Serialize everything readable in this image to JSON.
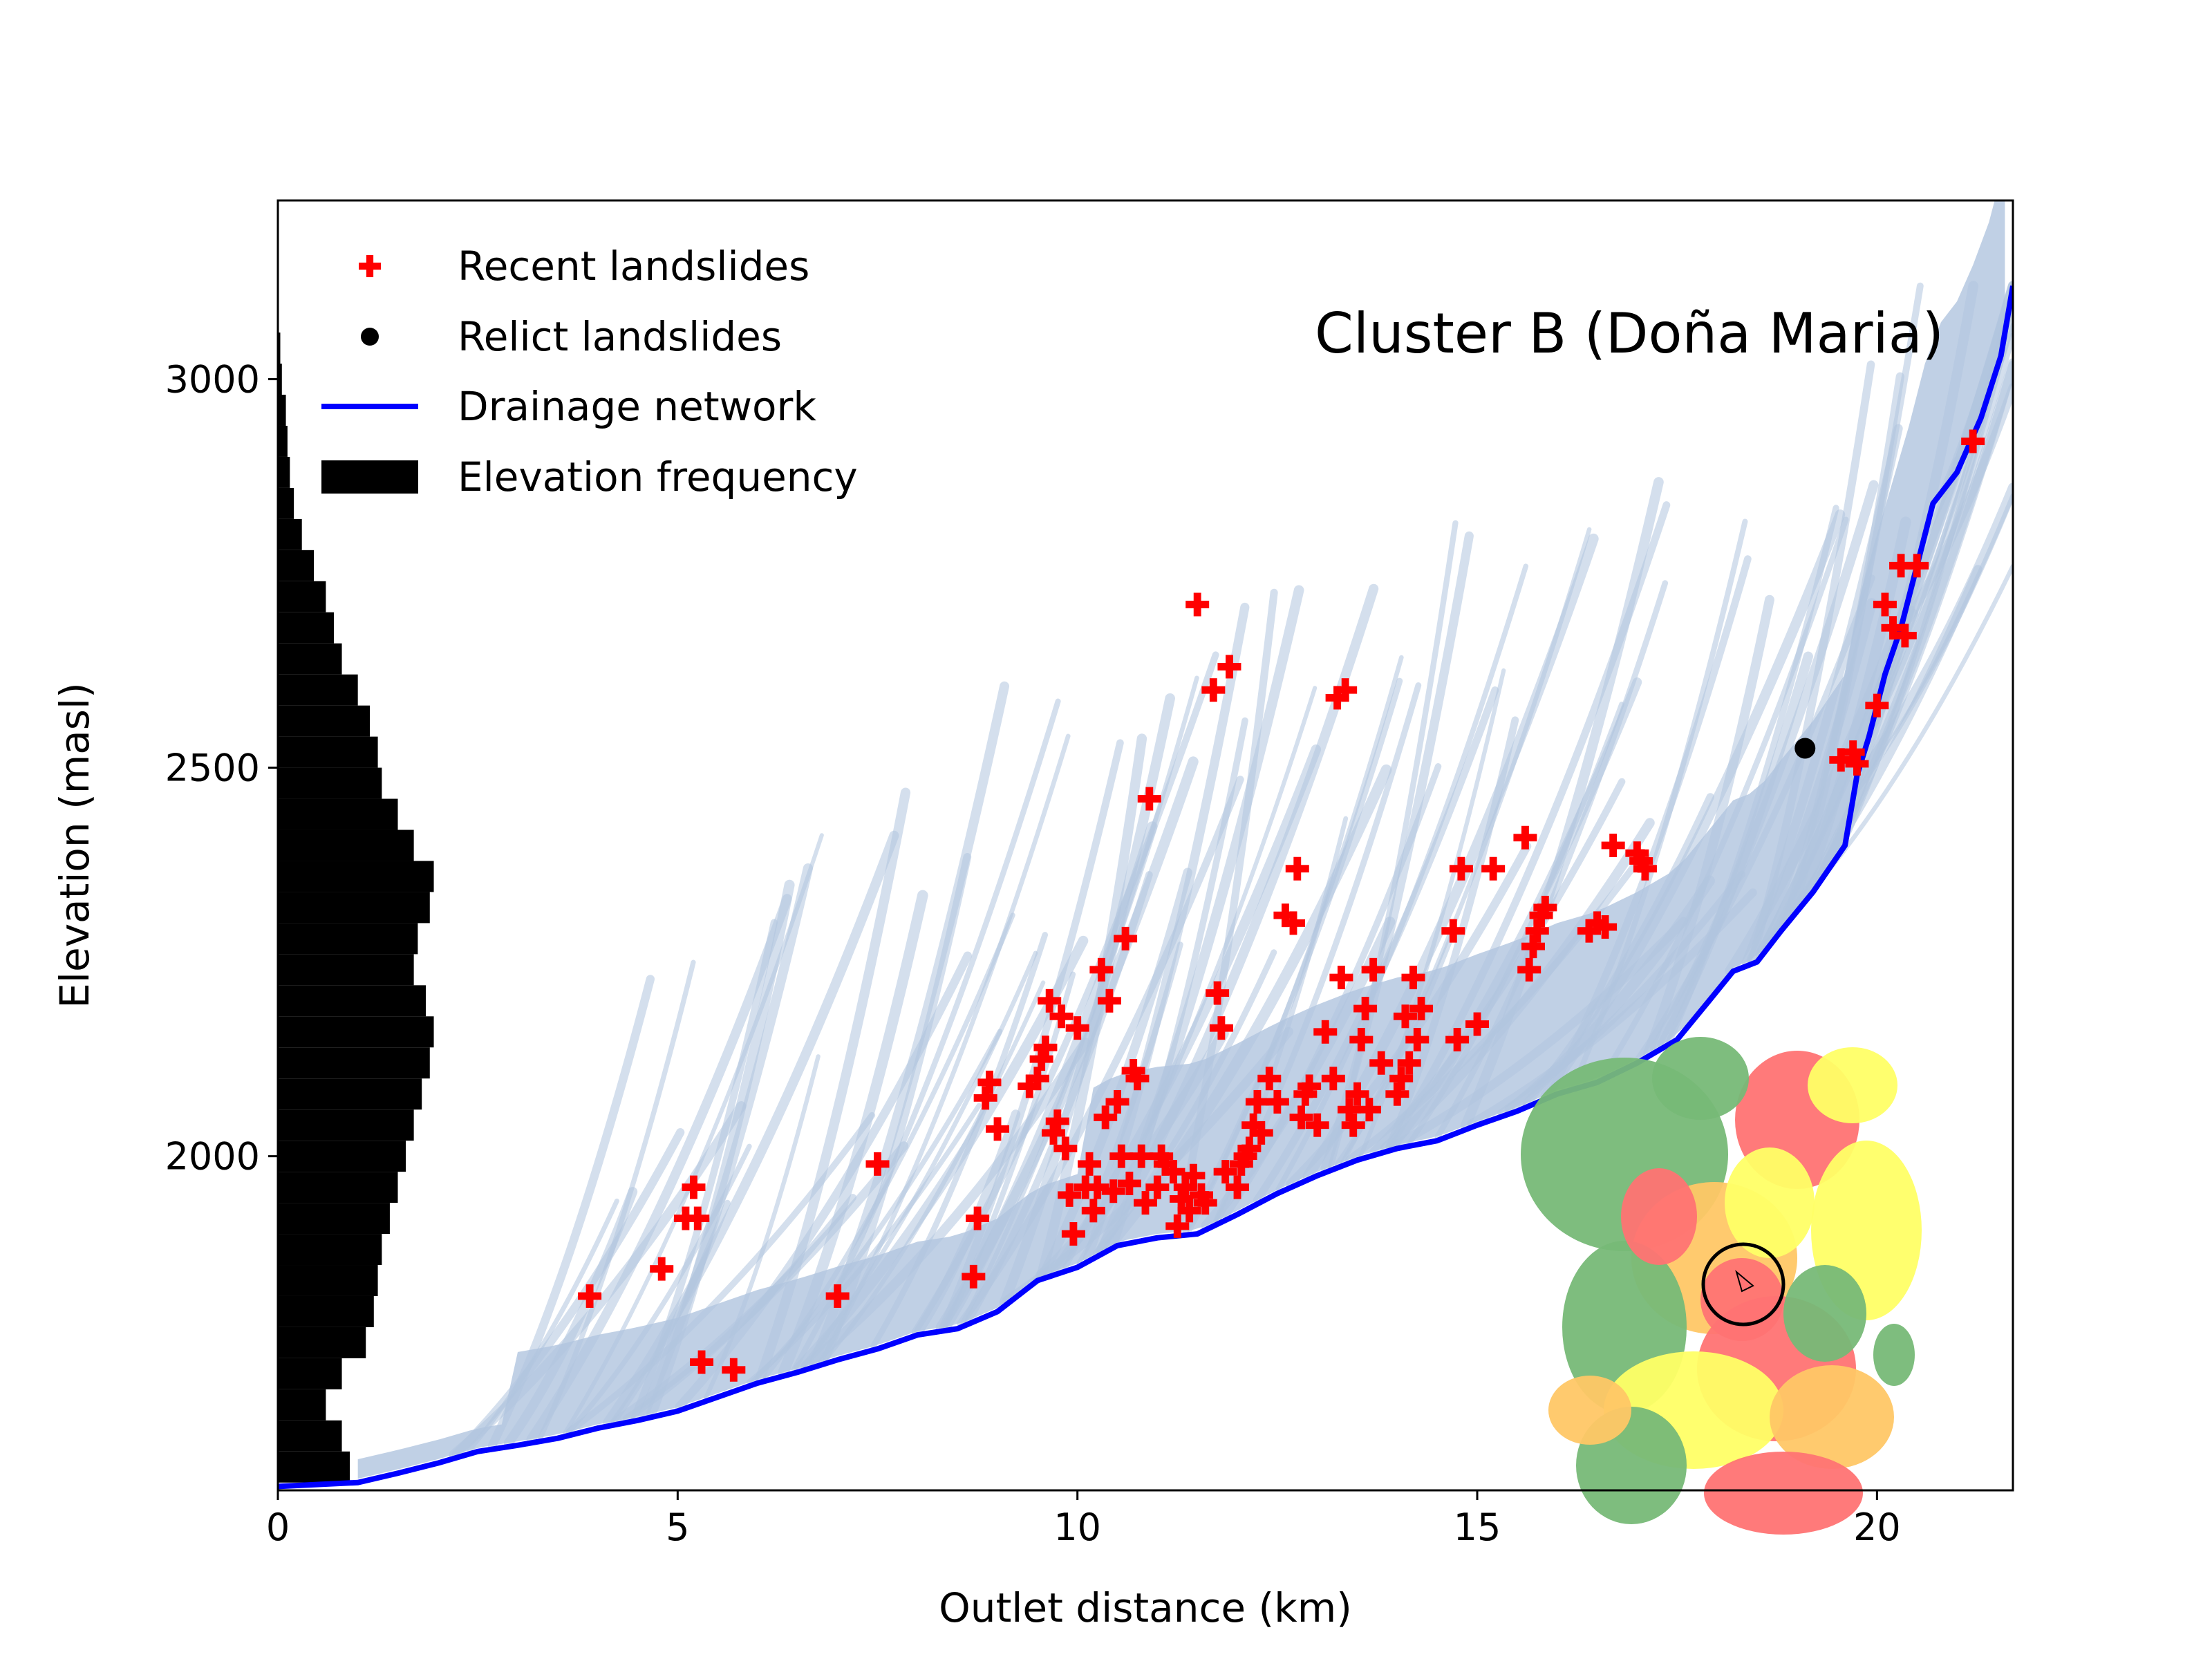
{
  "chart_data": {
    "type": "scatter",
    "title": "Cluster B (Doña Maria)",
    "xlabel": "Outlet distance (km)",
    "ylabel": "Elevation (masl)",
    "xlim": [
      0,
      21.7
    ],
    "ylim": [
      1570,
      3230
    ],
    "xticks": [
      0,
      5,
      10,
      15,
      20
    ],
    "yticks": [
      2000,
      2500,
      3000
    ],
    "grid": false,
    "legend_position": "top-left",
    "legend": [
      {
        "label": "Recent landslides",
        "kind": "plus",
        "color": "#ff0000"
      },
      {
        "label": "Relict landslides",
        "kind": "dot",
        "color": "#000000"
      },
      {
        "label": "Drainage network",
        "kind": "line",
        "color": "#0000ff"
      },
      {
        "label": "Elevation frequency",
        "kind": "patch",
        "color": "#000000"
      }
    ],
    "hillslope_color": "#b0c4de",
    "series": {
      "recent_landslides": [
        [
          3.9,
          1820
        ],
        [
          4.8,
          1855
        ],
        [
          5.1,
          1920
        ],
        [
          5.2,
          1960
        ],
        [
          5.25,
          1920
        ],
        [
          5.3,
          1735
        ],
        [
          5.7,
          1725
        ],
        [
          7.0,
          1820
        ],
        [
          7.5,
          1990
        ],
        [
          8.7,
          1845
        ],
        [
          8.75,
          1920
        ],
        [
          8.85,
          2075
        ],
        [
          8.9,
          2095
        ],
        [
          9.0,
          2035
        ],
        [
          9.4,
          2090
        ],
        [
          9.5,
          2100
        ],
        [
          9.55,
          2125
        ],
        [
          9.6,
          2140
        ],
        [
          9.65,
          2200
        ],
        [
          9.7,
          2030
        ],
        [
          9.75,
          2045
        ],
        [
          9.8,
          2180
        ],
        [
          9.85,
          2010
        ],
        [
          9.9,
          1950
        ],
        [
          9.95,
          1900
        ],
        [
          10.0,
          2165
        ],
        [
          10.1,
          1960
        ],
        [
          10.15,
          1990
        ],
        [
          10.2,
          1930
        ],
        [
          10.25,
          1960
        ],
        [
          10.3,
          2240
        ],
        [
          10.35,
          2050
        ],
        [
          10.4,
          2200
        ],
        [
          10.45,
          1955
        ],
        [
          10.5,
          2070
        ],
        [
          10.55,
          2000
        ],
        [
          10.6,
          2280
        ],
        [
          10.65,
          1965
        ],
        [
          10.7,
          2110
        ],
        [
          10.75,
          2100
        ],
        [
          10.8,
          2000
        ],
        [
          10.85,
          1940
        ],
        [
          10.9,
          2460
        ],
        [
          11.0,
          1960
        ],
        [
          11.05,
          2000
        ],
        [
          11.1,
          1990
        ],
        [
          11.2,
          1980
        ],
        [
          11.25,
          1910
        ],
        [
          11.3,
          1945
        ],
        [
          11.35,
          1960
        ],
        [
          11.4,
          1930
        ],
        [
          11.45,
          1975
        ],
        [
          11.5,
          2710
        ],
        [
          11.55,
          1950
        ],
        [
          11.6,
          1940
        ],
        [
          11.7,
          2600
        ],
        [
          11.75,
          2210
        ],
        [
          11.8,
          2165
        ],
        [
          11.85,
          1980
        ],
        [
          11.9,
          2630
        ],
        [
          12.0,
          1960
        ],
        [
          12.05,
          1990
        ],
        [
          12.1,
          2000
        ],
        [
          12.15,
          2010
        ],
        [
          12.2,
          2040
        ],
        [
          12.25,
          2070
        ],
        [
          12.3,
          2030
        ],
        [
          12.4,
          2100
        ],
        [
          12.5,
          2070
        ],
        [
          12.6,
          2310
        ],
        [
          12.7,
          2300
        ],
        [
          12.75,
          2370
        ],
        [
          12.8,
          2050
        ],
        [
          12.85,
          2080
        ],
        [
          12.9,
          2090
        ],
        [
          13.0,
          2040
        ],
        [
          13.1,
          2160
        ],
        [
          13.2,
          2100
        ],
        [
          13.25,
          2590
        ],
        [
          13.3,
          2230
        ],
        [
          13.35,
          2600
        ],
        [
          13.4,
          2060
        ],
        [
          13.45,
          2040
        ],
        [
          13.5,
          2080
        ],
        [
          13.55,
          2150
        ],
        [
          13.6,
          2190
        ],
        [
          13.65,
          2060
        ],
        [
          13.7,
          2240
        ],
        [
          13.8,
          2120
        ],
        [
          14.0,
          2080
        ],
        [
          14.05,
          2100
        ],
        [
          14.1,
          2180
        ],
        [
          14.15,
          2120
        ],
        [
          14.2,
          2230
        ],
        [
          14.25,
          2150
        ],
        [
          14.3,
          2190
        ],
        [
          14.7,
          2290
        ],
        [
          14.75,
          2150
        ],
        [
          14.8,
          2370
        ],
        [
          15.0,
          2170
        ],
        [
          15.2,
          2370
        ],
        [
          15.6,
          2410
        ],
        [
          15.65,
          2240
        ],
        [
          15.7,
          2270
        ],
        [
          15.75,
          2290
        ],
        [
          15.8,
          2310
        ],
        [
          15.85,
          2320
        ],
        [
          16.4,
          2290
        ],
        [
          16.5,
          2300
        ],
        [
          16.6,
          2295
        ],
        [
          16.7,
          2400
        ],
        [
          17.0,
          2390
        ],
        [
          17.05,
          2380
        ],
        [
          17.1,
          2370
        ],
        [
          19.55,
          2510
        ],
        [
          19.7,
          2520
        ],
        [
          19.75,
          2505
        ],
        [
          20.0,
          2580
        ],
        [
          20.1,
          2710
        ],
        [
          20.2,
          2680
        ],
        [
          20.3,
          2760
        ],
        [
          20.35,
          2670
        ],
        [
          20.5,
          2760
        ],
        [
          21.2,
          2920
        ]
      ],
      "relict_landslides": [
        [
          19.1,
          2525
        ]
      ],
      "drainage_network": [
        [
          0,
          1575
        ],
        [
          1.0,
          1580
        ],
        [
          1.5,
          1592
        ],
        [
          2.0,
          1605
        ],
        [
          2.5,
          1620
        ],
        [
          3.0,
          1628
        ],
        [
          3.5,
          1637
        ],
        [
          4.0,
          1650
        ],
        [
          4.5,
          1660
        ],
        [
          5.0,
          1672
        ],
        [
          5.5,
          1690
        ],
        [
          6.0,
          1708
        ],
        [
          6.5,
          1722
        ],
        [
          7.0,
          1738
        ],
        [
          7.5,
          1752
        ],
        [
          8.0,
          1770
        ],
        [
          8.5,
          1778
        ],
        [
          9.0,
          1800
        ],
        [
          9.5,
          1840
        ],
        [
          10.0,
          1857
        ],
        [
          10.5,
          1885
        ],
        [
          11.0,
          1895
        ],
        [
          11.5,
          1900
        ],
        [
          12.0,
          1925
        ],
        [
          12.5,
          1952
        ],
        [
          13.0,
          1975
        ],
        [
          13.5,
          1995
        ],
        [
          14.0,
          2010
        ],
        [
          14.5,
          2020
        ],
        [
          15.0,
          2040
        ],
        [
          15.5,
          2058
        ],
        [
          16.0,
          2080
        ],
        [
          16.5,
          2095
        ],
        [
          17.0,
          2120
        ],
        [
          17.5,
          2150
        ],
        [
          17.9,
          2200
        ],
        [
          18.2,
          2238
        ],
        [
          18.5,
          2250
        ],
        [
          18.8,
          2290
        ],
        [
          19.2,
          2340
        ],
        [
          19.6,
          2400
        ],
        [
          19.75,
          2490
        ],
        [
          19.9,
          2540
        ],
        [
          20.1,
          2620
        ],
        [
          20.3,
          2680
        ],
        [
          20.5,
          2760
        ],
        [
          20.7,
          2840
        ],
        [
          21.0,
          2880
        ],
        [
          21.3,
          2950
        ],
        [
          21.55,
          3030
        ],
        [
          21.7,
          3120
        ]
      ],
      "elevation_frequency": [
        [
          1580,
          0.9
        ],
        [
          1620,
          0.8
        ],
        [
          1660,
          0.6
        ],
        [
          1700,
          0.8
        ],
        [
          1740,
          1.1
        ],
        [
          1780,
          1.2
        ],
        [
          1820,
          1.25
        ],
        [
          1860,
          1.3
        ],
        [
          1900,
          1.4
        ],
        [
          1940,
          1.5
        ],
        [
          1980,
          1.6
        ],
        [
          2020,
          1.7
        ],
        [
          2060,
          1.8
        ],
        [
          2100,
          1.9
        ],
        [
          2140,
          1.95
        ],
        [
          2180,
          1.85
        ],
        [
          2220,
          1.7
        ],
        [
          2260,
          1.75
        ],
        [
          2300,
          1.9
        ],
        [
          2340,
          1.95
        ],
        [
          2380,
          1.7
        ],
        [
          2420,
          1.5
        ],
        [
          2460,
          1.3
        ],
        [
          2500,
          1.25
        ],
        [
          2540,
          1.15
        ],
        [
          2580,
          1.0
        ],
        [
          2620,
          0.8
        ],
        [
          2660,
          0.7
        ],
        [
          2700,
          0.6
        ],
        [
          2740,
          0.45
        ],
        [
          2780,
          0.3
        ],
        [
          2820,
          0.2
        ],
        [
          2860,
          0.15
        ],
        [
          2900,
          0.12
        ],
        [
          2940,
          0.1
        ],
        [
          2980,
          0.05
        ],
        [
          3020,
          0.03
        ],
        [
          3060,
          0.01
        ]
      ]
    }
  }
}
